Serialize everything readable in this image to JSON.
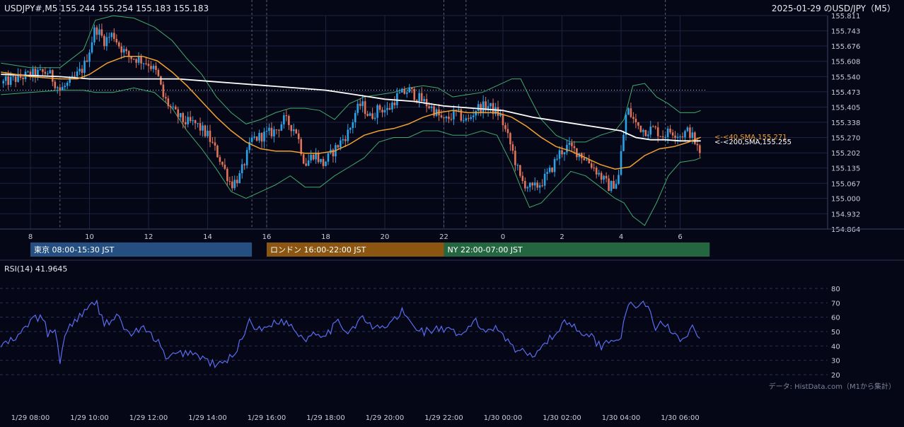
{
  "header": {
    "symbol_line": "USDJPY#,M5 155.244 155.254 155.183 155.183",
    "title": "2025-01-29 のUSD/JPY（M5）"
  },
  "colors": {
    "background": "#050717",
    "grid": "#1c2340",
    "candle_up": "#2aa3e8",
    "candle_down": "#e0735a",
    "sma40": "#f0a030",
    "sma200": "#ffffff",
    "bollinger": "#3faa6a",
    "rsi": "#5b6cf0",
    "session_tokyo": "#254f80",
    "session_london": "#8a5612",
    "session_ny": "#246640"
  },
  "sessions": [
    {
      "label": "東京 08:00-15:30 JST"
    },
    {
      "label": "ロンドン 16:00-22:00 JST"
    },
    {
      "label": "NY 22:00-07:00 JST"
    }
  ],
  "indicators": {
    "sma40_label": "<-<40,SMA,155.271",
    "sma200_label": "<-<200,SMA,155.255",
    "rsi_label": "RSI(14) 41.9645"
  },
  "source_note": "データ: HistData.com（M1から集計）",
  "chart_data": [
    {
      "type": "candlestick",
      "title": "2025-01-29 のUSD/JPY（M5）",
      "ylim": [
        154.864,
        155.811
      ],
      "y_ticks": [
        "155.811",
        "155.743",
        "155.676",
        "155.608",
        "155.540",
        "155.473",
        "155.405",
        "155.338",
        "155.270",
        "155.202",
        "155.135",
        "155.067",
        "155.000",
        "154.932",
        "154.864"
      ],
      "x_hour_ticks": [
        "8",
        "10",
        "12",
        "14",
        "16",
        "18",
        "20",
        "22",
        "0",
        "2",
        "4",
        "6"
      ],
      "dotted_reference_level": 155.48,
      "close_anchors": [
        [
          7.0,
          155.51
        ],
        [
          7.5,
          155.53
        ],
        [
          8.0,
          155.55
        ],
        [
          8.6,
          155.56
        ],
        [
          9.0,
          155.48
        ],
        [
          9.4,
          155.52
        ],
        [
          9.8,
          155.58
        ],
        [
          10.0,
          155.66
        ],
        [
          10.2,
          155.76
        ],
        [
          10.5,
          155.7
        ],
        [
          10.8,
          155.73
        ],
        [
          11.0,
          155.68
        ],
        [
          11.3,
          155.63
        ],
        [
          11.6,
          155.62
        ],
        [
          12.0,
          155.6
        ],
        [
          12.3,
          155.55
        ],
        [
          12.5,
          155.45
        ],
        [
          12.8,
          155.39
        ],
        [
          13.2,
          155.34
        ],
        [
          13.6,
          155.33
        ],
        [
          14.0,
          155.28
        ],
        [
          14.4,
          155.18
        ],
        [
          14.8,
          155.06
        ],
        [
          15.1,
          155.1
        ],
        [
          15.5,
          155.26
        ],
        [
          15.9,
          155.28
        ],
        [
          16.3,
          155.3
        ],
        [
          16.6,
          155.35
        ],
        [
          17.0,
          155.3
        ],
        [
          17.3,
          155.15
        ],
        [
          17.6,
          155.2
        ],
        [
          17.9,
          155.15
        ],
        [
          18.2,
          155.2
        ],
        [
          18.5,
          155.25
        ],
        [
          18.8,
          155.3
        ],
        [
          19.0,
          155.38
        ],
        [
          19.2,
          155.42
        ],
        [
          19.5,
          155.36
        ],
        [
          19.8,
          155.4
        ],
        [
          20.1,
          155.39
        ],
        [
          20.4,
          155.45
        ],
        [
          20.8,
          155.48
        ],
        [
          21.2,
          155.44
        ],
        [
          21.6,
          155.4
        ],
        [
          22.0,
          155.34
        ],
        [
          22.4,
          155.38
        ],
        [
          22.8,
          155.34
        ],
        [
          23.1,
          155.4
        ],
        [
          23.5,
          155.41
        ],
        [
          23.9,
          155.37
        ],
        [
          24.3,
          155.22
        ],
        [
          24.6,
          155.08
        ],
        [
          25.0,
          155.04
        ],
        [
          25.3,
          155.07
        ],
        [
          25.6,
          155.12
        ],
        [
          25.9,
          155.2
        ],
        [
          26.2,
          155.23
        ],
        [
          26.6,
          155.2
        ],
        [
          27.0,
          155.15
        ],
        [
          27.3,
          155.1
        ],
        [
          27.6,
          155.05
        ],
        [
          27.9,
          155.08
        ],
        [
          28.0,
          155.2
        ],
        [
          28.2,
          155.4
        ],
        [
          28.5,
          155.33
        ],
        [
          28.8,
          155.3
        ],
        [
          29.1,
          155.31
        ],
        [
          29.4,
          155.28
        ],
        [
          29.7,
          155.3
        ],
        [
          30.0,
          155.28
        ],
        [
          30.3,
          155.3
        ],
        [
          30.5,
          155.25
        ],
        [
          30.7,
          155.183
        ]
      ],
      "sma40_anchors": [
        [
          7.0,
          155.56
        ],
        [
          8.0,
          155.54
        ],
        [
          9.0,
          155.53
        ],
        [
          9.6,
          155.53
        ],
        [
          10.0,
          155.55
        ],
        [
          10.6,
          155.6
        ],
        [
          11.2,
          155.63
        ],
        [
          11.8,
          155.63
        ],
        [
          12.3,
          155.61
        ],
        [
          12.8,
          155.56
        ],
        [
          13.3,
          155.5
        ],
        [
          13.8,
          155.43
        ],
        [
          14.3,
          155.36
        ],
        [
          14.8,
          155.3
        ],
        [
          15.3,
          155.25
        ],
        [
          15.8,
          155.22
        ],
        [
          16.3,
          155.21
        ],
        [
          16.8,
          155.21
        ],
        [
          17.3,
          155.2
        ],
        [
          17.8,
          155.2
        ],
        [
          18.3,
          155.21
        ],
        [
          18.8,
          155.24
        ],
        [
          19.3,
          155.28
        ],
        [
          19.8,
          155.3
        ],
        [
          20.3,
          155.31
        ],
        [
          20.8,
          155.33
        ],
        [
          21.3,
          155.36
        ],
        [
          21.8,
          155.38
        ],
        [
          22.3,
          155.39
        ],
        [
          22.8,
          155.38
        ],
        [
          23.3,
          155.38
        ],
        [
          23.8,
          155.38
        ],
        [
          24.3,
          155.36
        ],
        [
          24.8,
          155.32
        ],
        [
          25.3,
          155.27
        ],
        [
          25.8,
          155.23
        ],
        [
          26.3,
          155.21
        ],
        [
          26.8,
          155.18
        ],
        [
          27.3,
          155.15
        ],
        [
          27.8,
          155.13
        ],
        [
          28.3,
          155.14
        ],
        [
          28.8,
          155.19
        ],
        [
          29.3,
          155.22
        ],
        [
          29.8,
          155.23
        ],
        [
          30.3,
          155.25
        ],
        [
          30.7,
          155.271
        ]
      ],
      "sma200_anchors": [
        [
          7.0,
          155.55
        ],
        [
          9.0,
          155.54
        ],
        [
          10.0,
          155.53
        ],
        [
          11.0,
          155.53
        ],
        [
          12.0,
          155.53
        ],
        [
          13.0,
          155.53
        ],
        [
          14.0,
          155.52
        ],
        [
          15.0,
          155.51
        ],
        [
          16.0,
          155.5
        ],
        [
          17.0,
          155.49
        ],
        [
          18.0,
          155.48
        ],
        [
          19.0,
          155.46
        ],
        [
          20.0,
          155.44
        ],
        [
          21.0,
          155.43
        ],
        [
          22.0,
          155.41
        ],
        [
          23.0,
          155.4
        ],
        [
          24.0,
          155.39
        ],
        [
          25.0,
          155.36
        ],
        [
          26.0,
          155.34
        ],
        [
          27.0,
          155.32
        ],
        [
          28.0,
          155.3
        ],
        [
          28.5,
          155.27
        ],
        [
          29.0,
          155.26
        ],
        [
          29.5,
          155.26
        ],
        [
          30.0,
          155.255
        ],
        [
          30.7,
          155.255
        ]
      ],
      "bollinger_upper_anchors": [
        [
          7.0,
          155.6
        ],
        [
          8.0,
          155.58
        ],
        [
          9.0,
          155.58
        ],
        [
          9.8,
          155.66
        ],
        [
          10.2,
          155.79
        ],
        [
          10.8,
          155.81
        ],
        [
          11.5,
          155.8
        ],
        [
          12.2,
          155.76
        ],
        [
          12.8,
          155.7
        ],
        [
          13.3,
          155.62
        ],
        [
          13.8,
          155.55
        ],
        [
          14.3,
          155.45
        ],
        [
          14.8,
          155.38
        ],
        [
          15.3,
          155.33
        ],
        [
          15.8,
          155.35
        ],
        [
          16.3,
          155.38
        ],
        [
          16.8,
          155.4
        ],
        [
          17.3,
          155.4
        ],
        [
          17.8,
          155.39
        ],
        [
          18.3,
          155.35
        ],
        [
          18.8,
          155.42
        ],
        [
          19.3,
          155.45
        ],
        [
          19.8,
          155.46
        ],
        [
          20.3,
          155.47
        ],
        [
          20.8,
          155.49
        ],
        [
          21.3,
          155.5
        ],
        [
          21.8,
          155.49
        ],
        [
          22.3,
          155.45
        ],
        [
          22.8,
          155.46
        ],
        [
          23.3,
          155.47
        ],
        [
          23.8,
          155.5
        ],
        [
          24.3,
          155.53
        ],
        [
          24.6,
          155.53
        ],
        [
          24.9,
          155.45
        ],
        [
          25.3,
          155.35
        ],
        [
          25.8,
          155.28
        ],
        [
          26.3,
          155.25
        ],
        [
          26.8,
          155.25
        ],
        [
          27.3,
          155.28
        ],
        [
          27.8,
          155.3
        ],
        [
          28.1,
          155.35
        ],
        [
          28.4,
          155.5
        ],
        [
          28.8,
          155.51
        ],
        [
          29.2,
          155.45
        ],
        [
          29.6,
          155.42
        ],
        [
          30.0,
          155.38
        ],
        [
          30.5,
          155.38
        ],
        [
          30.7,
          155.39
        ]
      ],
      "bollinger_lower_anchors": [
        [
          7.0,
          155.46
        ],
        [
          8.0,
          155.47
        ],
        [
          9.0,
          155.48
        ],
        [
          9.8,
          155.48
        ],
        [
          10.2,
          155.47
        ],
        [
          10.8,
          155.47
        ],
        [
          11.5,
          155.49
        ],
        [
          12.2,
          155.47
        ],
        [
          12.8,
          155.4
        ],
        [
          13.3,
          155.3
        ],
        [
          13.8,
          155.22
        ],
        [
          14.3,
          155.13
        ],
        [
          14.8,
          155.03
        ],
        [
          15.3,
          155.0
        ],
        [
          15.8,
          155.03
        ],
        [
          16.3,
          155.06
        ],
        [
          16.8,
          155.1
        ],
        [
          17.3,
          155.05
        ],
        [
          17.8,
          155.05
        ],
        [
          18.3,
          155.1
        ],
        [
          18.8,
          155.14
        ],
        [
          19.3,
          155.18
        ],
        [
          19.8,
          155.25
        ],
        [
          20.3,
          155.27
        ],
        [
          20.8,
          155.27
        ],
        [
          21.3,
          155.3
        ],
        [
          21.8,
          155.3
        ],
        [
          22.3,
          155.28
        ],
        [
          22.8,
          155.28
        ],
        [
          23.3,
          155.3
        ],
        [
          23.8,
          155.28
        ],
        [
          24.3,
          155.15
        ],
        [
          24.6,
          155.05
        ],
        [
          24.9,
          154.96
        ],
        [
          25.3,
          154.98
        ],
        [
          25.8,
          155.05
        ],
        [
          26.3,
          155.12
        ],
        [
          26.8,
          155.1
        ],
        [
          27.3,
          155.05
        ],
        [
          27.8,
          155.0
        ],
        [
          28.1,
          154.98
        ],
        [
          28.4,
          154.92
        ],
        [
          28.8,
          154.88
        ],
        [
          29.2,
          154.98
        ],
        [
          29.6,
          155.1
        ],
        [
          30.0,
          155.16
        ],
        [
          30.5,
          155.17
        ],
        [
          30.7,
          155.18
        ]
      ]
    },
    {
      "type": "line",
      "title": "RSI(14) 41.9645",
      "ylim": [
        20,
        80
      ],
      "y_ticks": [
        "80",
        "70",
        "60",
        "50",
        "40",
        "30",
        "20"
      ],
      "rsi_anchors": [
        [
          7.0,
          40
        ],
        [
          7.6,
          46
        ],
        [
          8.0,
          58
        ],
        [
          8.4,
          60
        ],
        [
          8.6,
          48
        ],
        [
          8.8,
          52
        ],
        [
          9.0,
          30
        ],
        [
          9.2,
          50
        ],
        [
          9.6,
          60
        ],
        [
          10.0,
          66
        ],
        [
          10.2,
          72
        ],
        [
          10.5,
          56
        ],
        [
          11.0,
          60
        ],
        [
          11.3,
          48
        ],
        [
          11.8,
          52
        ],
        [
          12.3,
          44
        ],
        [
          12.6,
          30
        ],
        [
          12.9,
          34
        ],
        [
          13.4,
          36
        ],
        [
          13.8,
          32
        ],
        [
          14.3,
          26
        ],
        [
          14.7,
          30
        ],
        [
          15.1,
          42
        ],
        [
          15.4,
          58
        ],
        [
          15.8,
          50
        ],
        [
          16.3,
          58
        ],
        [
          16.8,
          55
        ],
        [
          17.3,
          44
        ],
        [
          17.6,
          50
        ],
        [
          18.0,
          48
        ],
        [
          18.4,
          56
        ],
        [
          18.8,
          50
        ],
        [
          19.2,
          60
        ],
        [
          19.6,
          52
        ],
        [
          20.1,
          54
        ],
        [
          20.6,
          64
        ],
        [
          20.9,
          55
        ],
        [
          21.3,
          50
        ],
        [
          21.8,
          52
        ],
        [
          22.2,
          50
        ],
        [
          22.6,
          46
        ],
        [
          23.0,
          58
        ],
        [
          23.4,
          50
        ],
        [
          23.8,
          54
        ],
        [
          24.3,
          40
        ],
        [
          24.6,
          36
        ],
        [
          25.0,
          34
        ],
        [
          25.4,
          42
        ],
        [
          25.8,
          48
        ],
        [
          26.1,
          58
        ],
        [
          26.5,
          52
        ],
        [
          26.9,
          48
        ],
        [
          27.3,
          40
        ],
        [
          27.7,
          44
        ],
        [
          28.0,
          48
        ],
        [
          28.3,
          70
        ],
        [
          28.6,
          68
        ],
        [
          28.9,
          70
        ],
        [
          29.1,
          52
        ],
        [
          29.4,
          56
        ],
        [
          29.8,
          50
        ],
        [
          30.1,
          44
        ],
        [
          30.4,
          54
        ],
        [
          30.7,
          41.96
        ]
      ],
      "x_time_labels": [
        "1/29 08:00",
        "1/29 10:00",
        "1/29 12:00",
        "1/29 14:00",
        "1/29 16:00",
        "1/29 18:00",
        "1/29 20:00",
        "1/29 22:00",
        "1/30 00:00",
        "1/30 02:00",
        "1/30 04:00",
        "1/30 06:00"
      ]
    }
  ]
}
